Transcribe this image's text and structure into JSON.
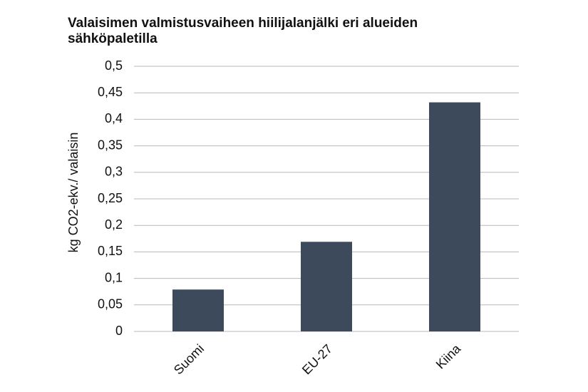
{
  "chart_data": {
    "type": "bar",
    "title": "Valaisimen valmistusvaiheen hiilijalanjälki eri alueiden sähköpaletilla",
    "y_label": "kg CO2-ekv./ valaisin",
    "categories": [
      "Suomi",
      "EU-27",
      "Kiina"
    ],
    "values": [
      0.079,
      0.169,
      0.432
    ],
    "color": "#3d4a5c",
    "ylim": [
      0,
      0.5
    ],
    "yticks": [
      0,
      {
        "value": 0.05,
        "label": "0,05"
      },
      {
        "value": 0.1,
        "label": "0,1"
      },
      {
        "value": 0.15,
        "label": "0,15"
      },
      {
        "value": 0.2,
        "label": "0,2"
      },
      {
        "value": 0.25,
        "label": "0,25"
      },
      {
        "value": 0.3,
        "label": "0,3"
      },
      {
        "value": 0.35,
        "label": "0,35"
      },
      {
        "value": 0.4,
        "label": "0,4"
      },
      {
        "value": 0.45,
        "label": "0,45"
      },
      {
        "value": 0.5,
        "label": "0,5"
      }
    ],
    "grid": true
  }
}
